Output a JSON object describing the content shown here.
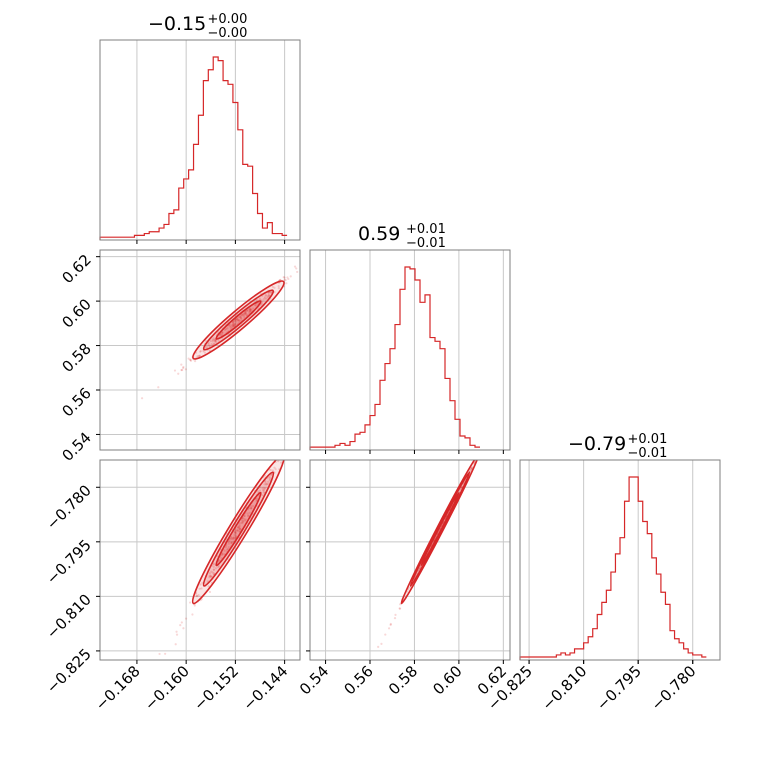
{
  "chart_data": {
    "type": "corner",
    "color": "#d62728",
    "parameters": [
      {
        "title": {
          "median": "−0.15",
          "plus": "+0.00",
          "minus": "−0.00"
        },
        "range": [
          -0.174,
          -0.1415
        ],
        "ticks": [
          -0.168,
          -0.16,
          -0.152,
          -0.144
        ],
        "tick_labels": [
          "−0.168",
          "−0.160",
          "−0.152",
          "−0.144"
        ],
        "histogram": {
          "start": -0.174,
          "bin_width": 0.0008,
          "values": [
            1,
            1,
            1,
            1,
            1,
            1,
            1,
            2,
            2,
            3,
            4,
            4,
            6,
            8,
            14,
            16,
            28,
            33,
            38,
            52,
            68,
            87,
            93,
            100,
            98,
            87,
            85,
            75,
            60,
            41,
            40,
            25,
            14,
            6,
            9,
            3,
            3,
            2
          ]
        }
      },
      {
        "title": {
          "median": "0.59",
          "plus": "+0.01",
          "minus": "−0.01"
        },
        "range": [
          0.533,
          0.623
        ],
        "ticks": [
          0.54,
          0.56,
          0.58,
          0.6,
          0.62
        ],
        "tick_labels": [
          "0.54",
          "0.56",
          "0.58",
          "0.60",
          "0.62"
        ],
        "histogram": {
          "start": 0.533,
          "bin_width": 0.00225,
          "values": [
            1,
            1,
            1,
            1,
            1,
            2,
            3,
            2,
            4,
            8,
            9,
            13,
            18,
            24,
            37,
            46,
            54,
            67,
            86,
            98,
            97,
            91,
            79,
            83,
            60,
            58,
            54,
            38,
            26,
            16,
            7,
            6,
            2,
            1
          ]
        }
      },
      {
        "title": {
          "median": "−0.79",
          "plus": "+0.01",
          "minus": "−0.01"
        },
        "range": [
          -0.8275,
          -0.7725
        ],
        "ticks": [
          -0.825,
          -0.81,
          -0.795,
          -0.78
        ],
        "tick_labels": [
          "−0.825",
          "−0.810",
          "−0.795",
          "−0.780"
        ],
        "histogram": {
          "start": -0.8275,
          "bin_width": 0.00125,
          "values": [
            1,
            1,
            1,
            1,
            1,
            1,
            1,
            1,
            2,
            3,
            2,
            3,
            5,
            5,
            8,
            11,
            15,
            22,
            28,
            34,
            43,
            52,
            60,
            78,
            90,
            90,
            78,
            68,
            62,
            50,
            42,
            33,
            27,
            14,
            10,
            8,
            5,
            3,
            2,
            2,
            1
          ]
        }
      }
    ],
    "scatter_panels": [
      {
        "x_param": 0,
        "y_param": 1,
        "slope": 2.35,
        "x_center": -0.1515,
        "y_center": 0.5915,
        "x_sigma": 0.0036,
        "y_noise": 0.0014
      },
      {
        "x_param": 0,
        "y_param": 2,
        "slope": 2.78,
        "x_center": -0.1515,
        "y_center": -0.7915,
        "x_sigma": 0.0036,
        "y_noise": 0.0013
      },
      {
        "x_param": 1,
        "y_param": 2,
        "slope": 1.18,
        "x_center": 0.5915,
        "y_center": -0.7915,
        "x_sigma": 0.0085,
        "y_noise": 0.0004
      }
    ],
    "grid": true
  }
}
